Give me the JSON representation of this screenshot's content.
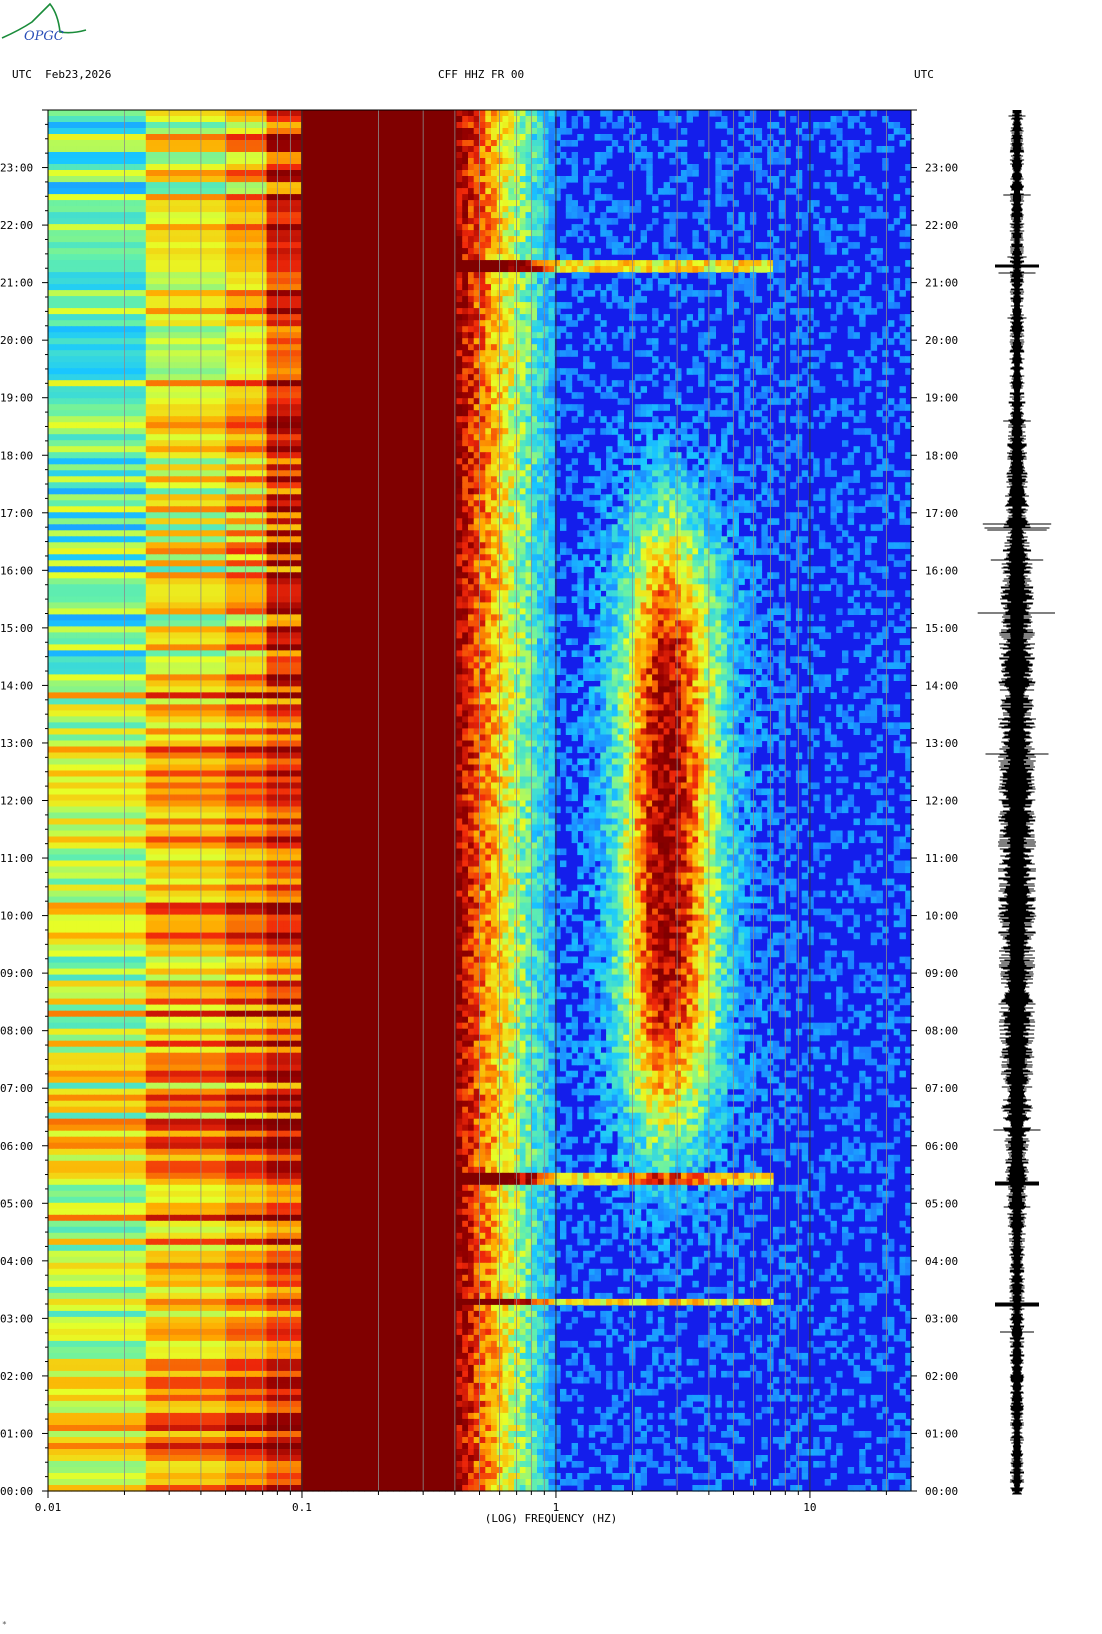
{
  "logo": {
    "text": "OPGC"
  },
  "header": {
    "left": "UTC  Feb23,2026",
    "center": "CFF HHZ FR 00",
    "right": "UTC"
  },
  "footer_mark": "*",
  "colors": {
    "low": "#1a2cff",
    "mid_low": "#19c8ff",
    "mid": "#8cf58a",
    "mid_high": "#ffff19",
    "high": "#ff8c00",
    "max": "#800000",
    "grid": "#8c8c8c"
  },
  "chart_data": {
    "type": "heatmap",
    "title": "CFF HHZ FR 00",
    "xlabel": "(LOG) FREQUENCY (HZ)",
    "ylabel": "UTC",
    "x_scale": "log",
    "xlim": [
      0.01,
      25
    ],
    "ylim_hours": [
      0,
      24
    ],
    "x_ticks": [
      {
        "value": 0.01,
        "label": "0.01"
      },
      {
        "value": 0.1,
        "label": "0.1"
      },
      {
        "value": 1,
        "label": "1"
      },
      {
        "value": 10,
        "label": "10"
      }
    ],
    "y_ticks": [
      "00:00",
      "01:00",
      "02:00",
      "03:00",
      "04:00",
      "05:00",
      "06:00",
      "07:00",
      "08:00",
      "09:00",
      "10:00",
      "11:00",
      "12:00",
      "13:00",
      "14:00",
      "15:00",
      "16:00",
      "17:00",
      "18:00",
      "19:00",
      "20:00",
      "21:00",
      "22:00",
      "23:00"
    ],
    "grid": true,
    "events_utc_hours": [
      3.3,
      5.4,
      21.3
    ],
    "seismogram": "right-side trace"
  }
}
